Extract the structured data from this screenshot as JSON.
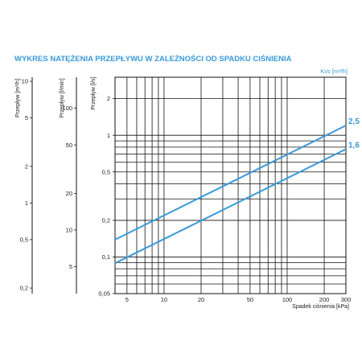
{
  "chart_data": {
    "type": "line",
    "title": "WYKRES NATĘŻENIA PRZEPŁYWU W ZALEŻNOŚCI OD SPADKU CIŚNIENIA",
    "xlabel": "Spadek ciśnienia [kPa]",
    "x_scale": "log",
    "xlim": [
      4,
      300
    ],
    "x_ticks": [
      5,
      10,
      20,
      50,
      100,
      200,
      300
    ],
    "ylabel": "Przepływ [l/s]",
    "y_scale": "log",
    "ylim": [
      0.05,
      3
    ],
    "y_ticks": [
      0.05,
      0.1,
      0.2,
      0.5,
      1,
      2
    ],
    "grid": true,
    "legend_title": "Kvs [m³/h]",
    "series_labels": [
      "2,5",
      "1,6"
    ],
    "series": [
      {
        "name": "2,5",
        "x": [
          4,
          300
        ],
        "y": [
          0.1389,
          1.2028
        ]
      },
      {
        "name": "1,6",
        "x": [
          4,
          300
        ],
        "y": [
          0.0889,
          0.7698
        ]
      }
    ],
    "secondary_axes": [
      {
        "label": "Przepływ [m³/h]",
        "ticks": [
          "10",
          "5",
          "2",
          "1",
          "0,5",
          "0,2"
        ],
        "tick_values": [
          10,
          5,
          2,
          1,
          0.5,
          0.2
        ]
      },
      {
        "label": "Przepływ [l/min]",
        "ticks": [
          "100",
          "50",
          "20",
          "10",
          "5"
        ],
        "tick_values": [
          100,
          50,
          20,
          10,
          5
        ]
      }
    ],
    "series_color": "#3a9ad9"
  }
}
